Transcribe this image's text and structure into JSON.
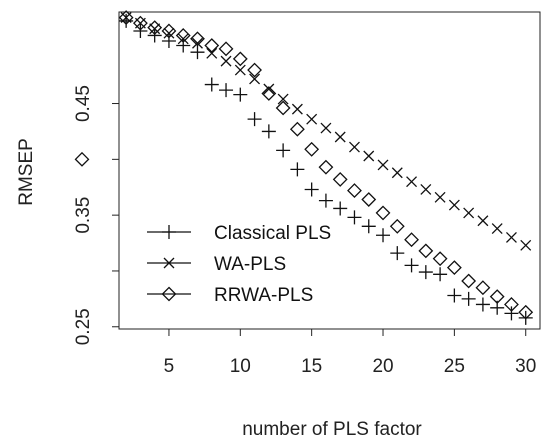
{
  "chart_data": {
    "type": "scatter",
    "title": "",
    "xlabel": "number of PLS factor",
    "ylabel": "RMSEP",
    "xlim": [
      1.5,
      31
    ],
    "ylim": [
      0.248,
      0.532
    ],
    "x_ticks": [
      5,
      10,
      15,
      20,
      25,
      30
    ],
    "x_tick_labels": [
      "5",
      "10",
      "15",
      "20",
      "25",
      "30"
    ],
    "y_ticks": [
      0.25,
      0.3,
      0.35,
      0.4,
      0.45
    ],
    "y_tick_labels": [
      "0.25",
      "",
      "0.35",
      "",
      "0.45"
    ],
    "grid": false,
    "legend_position": "bottom-left",
    "series": [
      {
        "name": "Classical PLS",
        "marker": "plus",
        "x": [
          2,
          3,
          4,
          5,
          6,
          7,
          8,
          9,
          10,
          11,
          12,
          13,
          14,
          15,
          16,
          17,
          18,
          19,
          20,
          21,
          22,
          23,
          24,
          25,
          26,
          27,
          28,
          29,
          30
        ],
        "y": [
          0.524,
          0.515,
          0.511,
          0.506,
          0.502,
          0.496,
          0.467,
          0.462,
          0.458,
          0.436,
          0.425,
          0.408,
          0.391,
          0.373,
          0.363,
          0.356,
          0.348,
          0.34,
          0.332,
          0.316,
          0.305,
          0.299,
          0.297,
          0.278,
          0.275,
          0.27,
          0.267,
          0.262,
          0.258
        ]
      },
      {
        "name": "WA-PLS",
        "marker": "x",
        "x": [
          2,
          3,
          4,
          5,
          6,
          7,
          8,
          9,
          10,
          11,
          12,
          13,
          14,
          15,
          16,
          17,
          18,
          19,
          20,
          21,
          22,
          23,
          24,
          25,
          26,
          27,
          28,
          29,
          30
        ],
        "y": [
          0.527,
          0.522,
          0.517,
          0.513,
          0.508,
          0.504,
          0.495,
          0.488,
          0.48,
          0.472,
          0.463,
          0.454,
          0.445,
          0.436,
          0.428,
          0.42,
          0.411,
          0.403,
          0.395,
          0.388,
          0.38,
          0.373,
          0.366,
          0.359,
          0.352,
          0.345,
          0.338,
          0.33,
          0.323
        ]
      },
      {
        "name": "RRWA-PLS",
        "marker": "diamond",
        "x": [
          2,
          3,
          4,
          5,
          6,
          7,
          8,
          9,
          10,
          11,
          12,
          13,
          14,
          15,
          16,
          17,
          18,
          19,
          20,
          21,
          22,
          23,
          24,
          25,
          26,
          27,
          28,
          29,
          30
        ],
        "y": [
          0.527,
          0.522,
          0.518,
          0.515,
          0.511,
          0.508,
          0.502,
          0.499,
          0.49,
          0.48,
          0.459,
          0.446,
          0.427,
          0.409,
          0.393,
          0.382,
          0.372,
          0.364,
          0.352,
          0.34,
          0.328,
          0.318,
          0.311,
          0.303,
          0.291,
          0.285,
          0.277,
          0.27,
          0.263
        ]
      }
    ]
  }
}
